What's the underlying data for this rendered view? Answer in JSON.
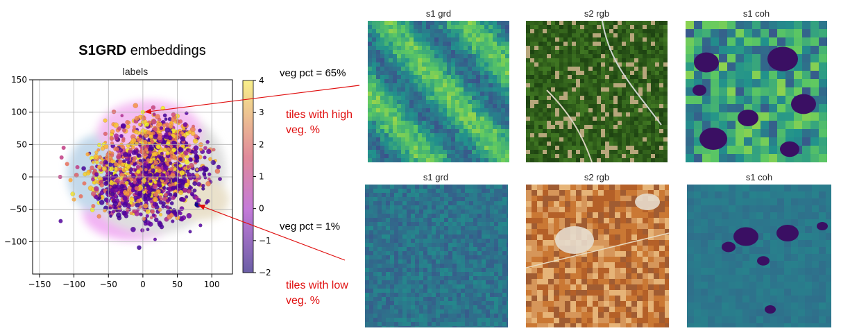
{
  "figure": {
    "title_bold": "S1GRD",
    "title_rest": " embeddings",
    "subtitle": "labels"
  },
  "annotations": {
    "high_veg_pct": "veg pct = 65%",
    "low_veg_pct": "veg pct = 1%",
    "high_tiles_line1": "tiles with high",
    "high_tiles_line2": "veg. %",
    "low_tiles_line1": "tiles with low",
    "low_tiles_line2": "veg. %"
  },
  "tiles": {
    "top": [
      {
        "title": "s1 grd",
        "kind": "grd_high"
      },
      {
        "title": "s2 rgb",
        "kind": "rgb_high"
      },
      {
        "title": "s1 coh",
        "kind": "coh_high"
      }
    ],
    "bottom": [
      {
        "title": "s1 grd",
        "kind": "grd_low"
      },
      {
        "title": "s2 rgb",
        "kind": "rgb_low"
      },
      {
        "title": "s1 coh",
        "kind": "coh_low"
      }
    ]
  },
  "chart_data": {
    "type": "scatter",
    "title": "labels",
    "xlim": [
      -160,
      130
    ],
    "ylim": [
      -150,
      150
    ],
    "xticks": [
      -150,
      -100,
      -50,
      0,
      50,
      100
    ],
    "yticks": [
      -100,
      -50,
      0,
      50,
      100,
      150
    ],
    "x_tick_labels": [
      "−150",
      "−100",
      "−50",
      "0",
      "50",
      "100"
    ],
    "y_tick_labels": [
      "−100",
      "−50",
      "0",
      "50",
      "100",
      "150"
    ],
    "grid": true,
    "colorbar": {
      "range": [
        -2,
        4
      ],
      "ticks": [
        -2,
        -1,
        0,
        1,
        2,
        3,
        4
      ],
      "tick_labels": [
        "−2",
        "−1",
        "0",
        "1",
        "2",
        "3",
        "4"
      ],
      "colormap": "plasma"
    },
    "highlighted_points": [
      {
        "label": "veg pct = 65%",
        "x": 0,
        "y": 100
      },
      {
        "label": "veg pct = 1%",
        "x": 78,
        "y": -43
      }
    ]
  },
  "colors": {
    "annotation_red": "#e01010",
    "grid": "#b0b0b0"
  }
}
